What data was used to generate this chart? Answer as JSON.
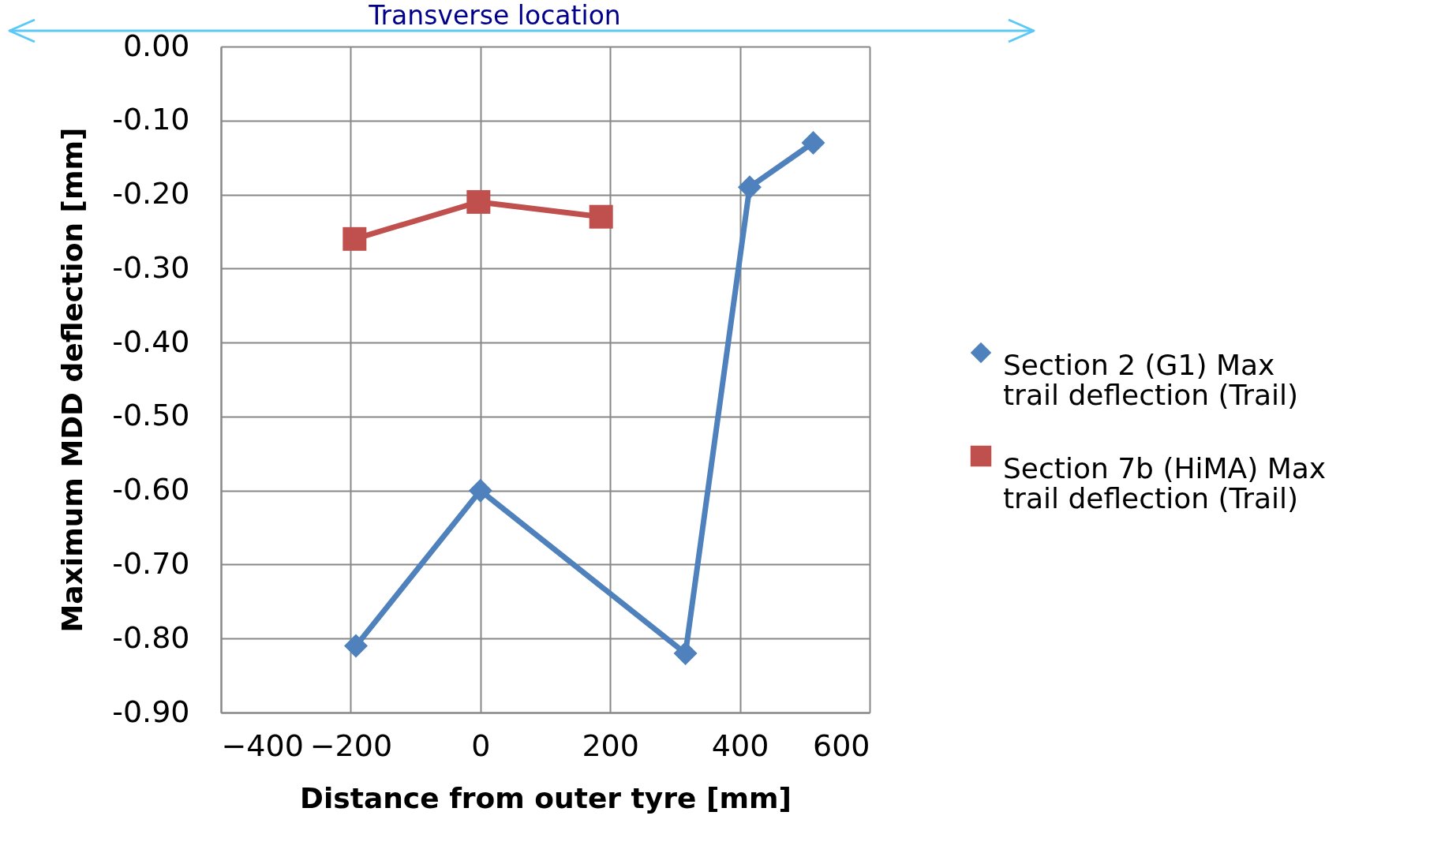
{
  "chart_data": {
    "type": "line",
    "xlabel": "Distance  from outer tyre [mm]",
    "ylabel": "Maximum MDD deflection [mm]",
    "annotations": [
      "Transverse location"
    ],
    "xlim": [
      -400,
      600
    ],
    "xticks": [
      -400,
      -200,
      0,
      200,
      400,
      600
    ],
    "ylim": [
      -0.9,
      0
    ],
    "yticks": [
      {
        "value": 0,
        "label": "0.00"
      },
      {
        "value": -0.1,
        "label": "-0.10"
      },
      {
        "value": -0.2,
        "label": "-0.20"
      },
      {
        "value": -0.3,
        "label": "-0.30"
      },
      {
        "value": -0.4,
        "label": "-0.40"
      },
      {
        "value": -0.5,
        "label": "-0.50"
      },
      {
        "value": -0.6,
        "label": "-0.60"
      },
      {
        "value": -0.7,
        "label": "-0.70"
      },
      {
        "value": -0.8,
        "label": "-0.80"
      },
      {
        "value": -0.9,
        "label": "-0.90"
      }
    ],
    "grid": true,
    "legend": "right",
    "line_style": "solid",
    "series": [
      {
        "name": "Section 2 (G1) Max trail deflection (Trail)",
        "color": "#4f81bd",
        "marker": "diamond",
        "x": [
          -192,
          0,
          316,
          415,
          513
        ],
        "values": [
          -0.81,
          -0.6,
          -0.82,
          -0.19,
          -0.13
        ]
      },
      {
        "name": "Section 7b (HiMA) Max trail deflection (Trail)",
        "color": "#c0504d",
        "marker": "square",
        "x": [
          -194,
          -3,
          186
        ],
        "values": [
          -0.26,
          -0.21,
          -0.23
        ]
      }
    ]
  }
}
